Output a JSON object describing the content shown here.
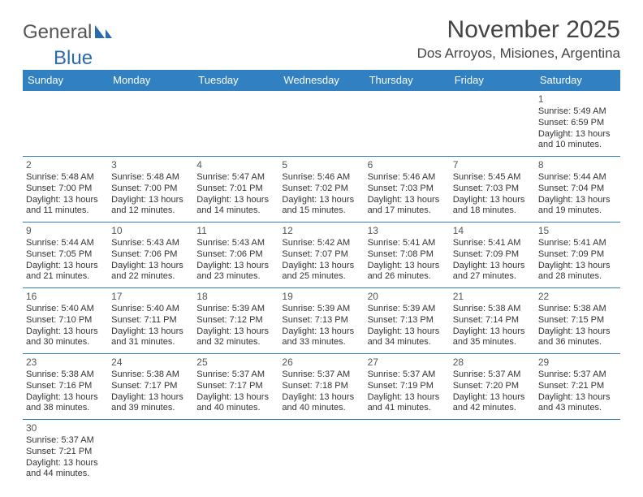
{
  "brand": {
    "part1": "General",
    "part2": "Blue"
  },
  "title": "November 2025",
  "location": "Dos Arroyos, Misiones, Argentina",
  "colors": {
    "header_bg": "#3080c2",
    "header_text": "#ffffff",
    "border": "#3080c2",
    "brand_blue": "#2a6ab0",
    "text": "#333333"
  },
  "weekdays": [
    "Sunday",
    "Monday",
    "Tuesday",
    "Wednesday",
    "Thursday",
    "Friday",
    "Saturday"
  ],
  "weeks": [
    [
      null,
      null,
      null,
      null,
      null,
      null,
      {
        "n": "1",
        "sr": "5:49 AM",
        "ss": "6:59 PM",
        "dl": "13 hours and 10 minutes."
      }
    ],
    [
      {
        "n": "2",
        "sr": "5:48 AM",
        "ss": "7:00 PM",
        "dl": "13 hours and 11 minutes."
      },
      {
        "n": "3",
        "sr": "5:48 AM",
        "ss": "7:00 PM",
        "dl": "13 hours and 12 minutes."
      },
      {
        "n": "4",
        "sr": "5:47 AM",
        "ss": "7:01 PM",
        "dl": "13 hours and 14 minutes."
      },
      {
        "n": "5",
        "sr": "5:46 AM",
        "ss": "7:02 PM",
        "dl": "13 hours and 15 minutes."
      },
      {
        "n": "6",
        "sr": "5:46 AM",
        "ss": "7:03 PM",
        "dl": "13 hours and 17 minutes."
      },
      {
        "n": "7",
        "sr": "5:45 AM",
        "ss": "7:03 PM",
        "dl": "13 hours and 18 minutes."
      },
      {
        "n": "8",
        "sr": "5:44 AM",
        "ss": "7:04 PM",
        "dl": "13 hours and 19 minutes."
      }
    ],
    [
      {
        "n": "9",
        "sr": "5:44 AM",
        "ss": "7:05 PM",
        "dl": "13 hours and 21 minutes."
      },
      {
        "n": "10",
        "sr": "5:43 AM",
        "ss": "7:06 PM",
        "dl": "13 hours and 22 minutes."
      },
      {
        "n": "11",
        "sr": "5:43 AM",
        "ss": "7:06 PM",
        "dl": "13 hours and 23 minutes."
      },
      {
        "n": "12",
        "sr": "5:42 AM",
        "ss": "7:07 PM",
        "dl": "13 hours and 25 minutes."
      },
      {
        "n": "13",
        "sr": "5:41 AM",
        "ss": "7:08 PM",
        "dl": "13 hours and 26 minutes."
      },
      {
        "n": "14",
        "sr": "5:41 AM",
        "ss": "7:09 PM",
        "dl": "13 hours and 27 minutes."
      },
      {
        "n": "15",
        "sr": "5:41 AM",
        "ss": "7:09 PM",
        "dl": "13 hours and 28 minutes."
      }
    ],
    [
      {
        "n": "16",
        "sr": "5:40 AM",
        "ss": "7:10 PM",
        "dl": "13 hours and 30 minutes."
      },
      {
        "n": "17",
        "sr": "5:40 AM",
        "ss": "7:11 PM",
        "dl": "13 hours and 31 minutes."
      },
      {
        "n": "18",
        "sr": "5:39 AM",
        "ss": "7:12 PM",
        "dl": "13 hours and 32 minutes."
      },
      {
        "n": "19",
        "sr": "5:39 AM",
        "ss": "7:13 PM",
        "dl": "13 hours and 33 minutes."
      },
      {
        "n": "20",
        "sr": "5:39 AM",
        "ss": "7:13 PM",
        "dl": "13 hours and 34 minutes."
      },
      {
        "n": "21",
        "sr": "5:38 AM",
        "ss": "7:14 PM",
        "dl": "13 hours and 35 minutes."
      },
      {
        "n": "22",
        "sr": "5:38 AM",
        "ss": "7:15 PM",
        "dl": "13 hours and 36 minutes."
      }
    ],
    [
      {
        "n": "23",
        "sr": "5:38 AM",
        "ss": "7:16 PM",
        "dl": "13 hours and 38 minutes."
      },
      {
        "n": "24",
        "sr": "5:38 AM",
        "ss": "7:17 PM",
        "dl": "13 hours and 39 minutes."
      },
      {
        "n": "25",
        "sr": "5:37 AM",
        "ss": "7:17 PM",
        "dl": "13 hours and 40 minutes."
      },
      {
        "n": "26",
        "sr": "5:37 AM",
        "ss": "7:18 PM",
        "dl": "13 hours and 40 minutes."
      },
      {
        "n": "27",
        "sr": "5:37 AM",
        "ss": "7:19 PM",
        "dl": "13 hours and 41 minutes."
      },
      {
        "n": "28",
        "sr": "5:37 AM",
        "ss": "7:20 PM",
        "dl": "13 hours and 42 minutes."
      },
      {
        "n": "29",
        "sr": "5:37 AM",
        "ss": "7:21 PM",
        "dl": "13 hours and 43 minutes."
      }
    ],
    [
      {
        "n": "30",
        "sr": "5:37 AM",
        "ss": "7:21 PM",
        "dl": "13 hours and 44 minutes."
      },
      null,
      null,
      null,
      null,
      null,
      null
    ]
  ],
  "labels": {
    "sunrise": "Sunrise: ",
    "sunset": "Sunset: ",
    "daylight": "Daylight: "
  }
}
